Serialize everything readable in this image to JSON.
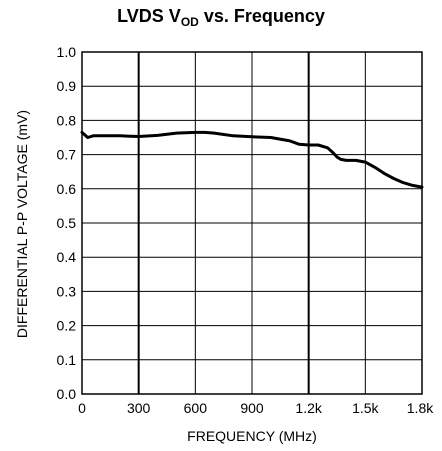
{
  "chart_data": {
    "type": "line",
    "title": {
      "main": "LVDS V",
      "sub": "OD",
      "rest": " vs. Frequency"
    },
    "xlabel": "FREQUENCY (MHz)",
    "ylabel": "DIFFERENTIAL P-P VOLTAGE (mV)",
    "xlim": [
      0,
      1800
    ],
    "ylim": [
      0.0,
      1.0
    ],
    "x_ticks": [
      {
        "value": 0,
        "label": "0"
      },
      {
        "value": 300,
        "label": "300"
      },
      {
        "value": 600,
        "label": "600"
      },
      {
        "value": 900,
        "label": "900"
      },
      {
        "value": 1200,
        "label": "1.2k"
      },
      {
        "value": 1500,
        "label": "1.5k"
      },
      {
        "value": 1800,
        "label": "1.8k"
      }
    ],
    "y_ticks": [
      {
        "value": 0.0,
        "label": "0.0"
      },
      {
        "value": 0.1,
        "label": "0.1"
      },
      {
        "value": 0.2,
        "label": "0.2"
      },
      {
        "value": 0.3,
        "label": "0.3"
      },
      {
        "value": 0.4,
        "label": "0.4"
      },
      {
        "value": 0.5,
        "label": "0.5"
      },
      {
        "value": 0.6,
        "label": "0.6"
      },
      {
        "value": 0.7,
        "label": "0.7"
      },
      {
        "value": 0.8,
        "label": "0.8"
      },
      {
        "value": 0.9,
        "label": "0.9"
      },
      {
        "value": 1.0,
        "label": "1.0"
      }
    ],
    "grid": true,
    "major_x_gridlines": [
      300,
      1200
    ],
    "series": [
      {
        "color": "#000000",
        "x": [
          0,
          30,
          60,
          120,
          200,
          300,
          400,
          500,
          600,
          650,
          700,
          800,
          900,
          1000,
          1100,
          1150,
          1200,
          1250,
          1300,
          1330,
          1350,
          1370,
          1400,
          1450,
          1500,
          1550,
          1600,
          1650,
          1700,
          1750,
          1800
        ],
        "y": [
          0.765,
          0.75,
          0.755,
          0.755,
          0.755,
          0.753,
          0.756,
          0.763,
          0.765,
          0.765,
          0.763,
          0.755,
          0.752,
          0.75,
          0.74,
          0.73,
          0.728,
          0.728,
          0.72,
          0.705,
          0.693,
          0.686,
          0.683,
          0.683,
          0.678,
          0.663,
          0.645,
          0.63,
          0.618,
          0.61,
          0.605
        ]
      }
    ]
  }
}
